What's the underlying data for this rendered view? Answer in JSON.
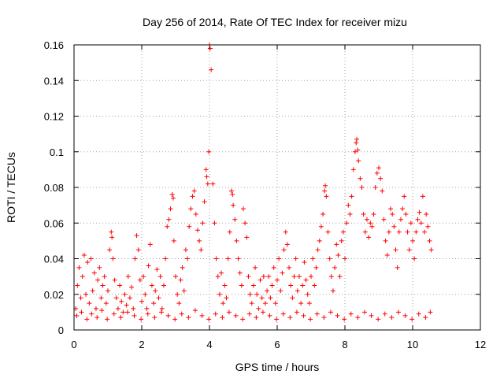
{
  "chart_data": {
    "type": "scatter",
    "title": "Day 256 of 2014, Rate Of TEC Index for receiver mizu",
    "xlabel": "GPS time / hours",
    "ylabel": "ROTI / TECUs",
    "xlim": [
      0,
      12
    ],
    "ylim": [
      0,
      0.16
    ],
    "xticks": [
      0,
      2,
      4,
      6,
      8,
      10,
      12
    ],
    "xtick_labels": [
      "0",
      "2",
      "4",
      "6",
      "8",
      "10",
      "12"
    ],
    "yticks": [
      0,
      0.02,
      0.04,
      0.06,
      0.08,
      0.1,
      0.12,
      0.14,
      0.16
    ],
    "ytick_labels": [
      "0",
      "0.02",
      "0.04",
      "0.06",
      "0.08",
      "0.1",
      "0.12",
      "0.14",
      "0.16"
    ],
    "grid": true,
    "marker": "+",
    "color": "#ff0000",
    "series": [
      {
        "name": "ROTI",
        "points": [
          [
            0.05,
            0.012
          ],
          [
            0.1,
            0.025
          ],
          [
            0.15,
            0.035
          ],
          [
            0.2,
            0.018
          ],
          [
            0.25,
            0.03
          ],
          [
            0.3,
            0.042
          ],
          [
            0.35,
            0.02
          ],
          [
            0.4,
            0.038
          ],
          [
            0.45,
            0.015
          ],
          [
            0.5,
            0.04
          ],
          [
            0.55,
            0.022
          ],
          [
            0.6,
            0.032
          ],
          [
            0.65,
            0.012
          ],
          [
            0.7,
            0.028
          ],
          [
            0.75,
            0.035
          ],
          [
            0.8,
            0.018
          ],
          [
            0.85,
            0.025
          ],
          [
            0.9,
            0.03
          ],
          [
            0.95,
            0.015
          ],
          [
            1.0,
            0.022
          ],
          [
            1.05,
            0.045
          ],
          [
            1.1,
            0.055
          ],
          [
            1.12,
            0.052
          ],
          [
            1.15,
            0.04
          ],
          [
            1.2,
            0.028
          ],
          [
            1.25,
            0.018
          ],
          [
            1.3,
            0.012
          ],
          [
            1.35,
            0.025
          ],
          [
            1.4,
            0.016
          ],
          [
            1.45,
            0.01
          ],
          [
            1.5,
            0.02
          ],
          [
            1.55,
            0.014
          ],
          [
            1.6,
            0.03
          ],
          [
            1.65,
            0.018
          ],
          [
            1.7,
            0.024
          ],
          [
            1.75,
            0.012
          ],
          [
            1.8,
            0.04
          ],
          [
            1.85,
            0.053
          ],
          [
            1.9,
            0.045
          ],
          [
            1.95,
            0.028
          ],
          [
            2.0,
            0.016
          ],
          [
            2.05,
            0.03
          ],
          [
            2.1,
            0.02
          ],
          [
            2.15,
            0.012
          ],
          [
            2.2,
            0.036
          ],
          [
            2.25,
            0.048
          ],
          [
            2.3,
            0.025
          ],
          [
            2.35,
            0.015
          ],
          [
            2.4,
            0.022
          ],
          [
            2.45,
            0.034
          ],
          [
            2.5,
            0.018
          ],
          [
            2.55,
            0.03
          ],
          [
            2.6,
            0.012
          ],
          [
            2.65,
            0.025
          ],
          [
            2.7,
            0.04
          ],
          [
            2.75,
            0.058
          ],
          [
            2.8,
            0.062
          ],
          [
            2.85,
            0.068
          ],
          [
            2.9,
            0.076
          ],
          [
            2.93,
            0.074
          ],
          [
            2.95,
            0.05
          ],
          [
            3.0,
            0.03
          ],
          [
            3.05,
            0.02
          ],
          [
            3.1,
            0.015
          ],
          [
            3.15,
            0.028
          ],
          [
            3.2,
            0.035
          ],
          [
            3.25,
            0.022
          ],
          [
            3.3,
            0.045
          ],
          [
            3.35,
            0.04
          ],
          [
            3.4,
            0.058
          ],
          [
            3.45,
            0.068
          ],
          [
            3.5,
            0.075
          ],
          [
            3.55,
            0.078
          ],
          [
            3.6,
            0.065
          ],
          [
            3.65,
            0.056
          ],
          [
            3.7,
            0.05
          ],
          [
            3.75,
            0.045
          ],
          [
            3.8,
            0.06
          ],
          [
            3.85,
            0.072
          ],
          [
            3.9,
            0.09
          ],
          [
            3.92,
            0.086
          ],
          [
            3.95,
            0.082
          ],
          [
            3.98,
            0.1
          ],
          [
            4.0,
            0.16
          ],
          [
            4.02,
            0.158
          ],
          [
            4.05,
            0.146
          ],
          [
            4.1,
            0.082
          ],
          [
            4.15,
            0.06
          ],
          [
            4.2,
            0.04
          ],
          [
            4.25,
            0.03
          ],
          [
            4.3,
            0.02
          ],
          [
            4.35,
            0.032
          ],
          [
            4.4,
            0.015
          ],
          [
            4.45,
            0.025
          ],
          [
            4.5,
            0.018
          ],
          [
            4.55,
            0.04
          ],
          [
            4.6,
            0.055
          ],
          [
            4.65,
            0.078
          ],
          [
            4.68,
            0.076
          ],
          [
            4.7,
            0.07
          ],
          [
            4.75,
            0.062
          ],
          [
            4.8,
            0.05
          ],
          [
            4.85,
            0.04
          ],
          [
            4.9,
            0.032
          ],
          [
            4.95,
            0.025
          ],
          [
            5.0,
            0.068
          ],
          [
            5.05,
            0.06
          ],
          [
            5.1,
            0.052
          ],
          [
            5.15,
            0.03
          ],
          [
            5.2,
            0.02
          ],
          [
            5.25,
            0.015
          ],
          [
            5.3,
            0.025
          ],
          [
            5.35,
            0.035
          ],
          [
            5.4,
            0.02
          ],
          [
            5.45,
            0.012
          ],
          [
            5.5,
            0.028
          ],
          [
            5.55,
            0.018
          ],
          [
            5.6,
            0.03
          ],
          [
            5.65,
            0.015
          ],
          [
            5.7,
            0.022
          ],
          [
            5.75,
            0.03
          ],
          [
            5.8,
            0.018
          ],
          [
            5.85,
            0.025
          ],
          [
            5.9,
            0.035
          ],
          [
            5.95,
            0.015
          ],
          [
            6.0,
            0.028
          ],
          [
            6.05,
            0.04
          ],
          [
            6.1,
            0.022
          ],
          [
            6.15,
            0.032
          ],
          [
            6.2,
            0.045
          ],
          [
            6.25,
            0.055
          ],
          [
            6.3,
            0.048
          ],
          [
            6.35,
            0.035
          ],
          [
            6.4,
            0.025
          ],
          [
            6.45,
            0.018
          ],
          [
            6.5,
            0.03
          ],
          [
            6.55,
            0.04
          ],
          [
            6.6,
            0.022
          ],
          [
            6.65,
            0.03
          ],
          [
            6.7,
            0.015
          ],
          [
            6.75,
            0.025
          ],
          [
            6.8,
            0.038
          ],
          [
            6.85,
            0.028
          ],
          [
            6.9,
            0.02
          ],
          [
            6.95,
            0.015
          ],
          [
            7.0,
            0.03
          ],
          [
            7.05,
            0.04
          ],
          [
            7.1,
            0.025
          ],
          [
            7.15,
            0.035
          ],
          [
            7.2,
            0.045
          ],
          [
            7.25,
            0.05
          ],
          [
            7.3,
            0.058
          ],
          [
            7.35,
            0.065
          ],
          [
            7.4,
            0.078
          ],
          [
            7.42,
            0.081
          ],
          [
            7.45,
            0.075
          ],
          [
            7.5,
            0.055
          ],
          [
            7.55,
            0.04
          ],
          [
            7.6,
            0.03
          ],
          [
            7.65,
            0.022
          ],
          [
            7.7,
            0.035
          ],
          [
            7.75,
            0.048
          ],
          [
            7.8,
            0.042
          ],
          [
            7.85,
            0.03
          ],
          [
            7.9,
            0.05
          ],
          [
            7.95,
            0.055
          ],
          [
            8.0,
            0.04
          ],
          [
            8.05,
            0.06
          ],
          [
            8.1,
            0.07
          ],
          [
            8.15,
            0.065
          ],
          [
            8.2,
            0.075
          ],
          [
            8.25,
            0.09
          ],
          [
            8.3,
            0.1
          ],
          [
            8.33,
            0.105
          ],
          [
            8.35,
            0.107
          ],
          [
            8.38,
            0.101
          ],
          [
            8.4,
            0.095
          ],
          [
            8.45,
            0.085
          ],
          [
            8.5,
            0.08
          ],
          [
            8.55,
            0.065
          ],
          [
            8.6,
            0.055
          ],
          [
            8.65,
            0.062
          ],
          [
            8.7,
            0.052
          ],
          [
            8.75,
            0.06
          ],
          [
            8.8,
            0.058
          ],
          [
            8.85,
            0.065
          ],
          [
            8.9,
            0.08
          ],
          [
            8.95,
            0.088
          ],
          [
            9.0,
            0.091
          ],
          [
            9.05,
            0.085
          ],
          [
            9.1,
            0.078
          ],
          [
            9.15,
            0.062
          ],
          [
            9.2,
            0.05
          ],
          [
            9.25,
            0.042
          ],
          [
            9.3,
            0.055
          ],
          [
            9.35,
            0.068
          ],
          [
            9.4,
            0.065
          ],
          [
            9.45,
            0.058
          ],
          [
            9.5,
            0.045
          ],
          [
            9.55,
            0.035
          ],
          [
            9.6,
            0.055
          ],
          [
            9.65,
            0.062
          ],
          [
            9.7,
            0.068
          ],
          [
            9.75,
            0.075
          ],
          [
            9.8,
            0.065
          ],
          [
            9.85,
            0.055
          ],
          [
            9.9,
            0.045
          ],
          [
            9.95,
            0.06
          ],
          [
            10.0,
            0.05
          ],
          [
            10.05,
            0.04
          ],
          [
            10.1,
            0.055
          ],
          [
            10.15,
            0.062
          ],
          [
            10.2,
            0.066
          ],
          [
            10.25,
            0.06
          ],
          [
            10.3,
            0.075
          ],
          [
            10.35,
            0.055
          ],
          [
            10.4,
            0.065
          ],
          [
            10.45,
            0.058
          ],
          [
            10.5,
            0.05
          ],
          [
            10.55,
            0.045
          ],
          [
            0.08,
            0.008
          ],
          [
            0.22,
            0.01
          ],
          [
            0.38,
            0.006
          ],
          [
            0.52,
            0.009
          ],
          [
            0.68,
            0.007
          ],
          [
            0.82,
            0.011
          ],
          [
            0.98,
            0.006
          ],
          [
            1.18,
            0.009
          ],
          [
            1.38,
            0.007
          ],
          [
            1.58,
            0.01
          ],
          [
            1.78,
            0.008
          ],
          [
            1.98,
            0.006
          ],
          [
            2.18,
            0.009
          ],
          [
            2.38,
            0.007
          ],
          [
            2.58,
            0.01
          ],
          [
            2.78,
            0.008
          ],
          [
            2.98,
            0.006
          ],
          [
            3.18,
            0.009
          ],
          [
            3.38,
            0.007
          ],
          [
            3.58,
            0.011
          ],
          [
            3.78,
            0.008
          ],
          [
            3.98,
            0.006
          ],
          [
            4.18,
            0.009
          ],
          [
            4.38,
            0.007
          ],
          [
            4.58,
            0.01
          ],
          [
            4.78,
            0.008
          ],
          [
            4.98,
            0.006
          ],
          [
            5.18,
            0.009
          ],
          [
            5.38,
            0.007
          ],
          [
            5.58,
            0.01
          ],
          [
            5.78,
            0.008
          ],
          [
            5.98,
            0.006
          ],
          [
            6.18,
            0.009
          ],
          [
            6.38,
            0.007
          ],
          [
            6.58,
            0.01
          ],
          [
            6.78,
            0.008
          ],
          [
            6.98,
            0.006
          ],
          [
            7.18,
            0.009
          ],
          [
            7.38,
            0.007
          ],
          [
            7.58,
            0.01
          ],
          [
            7.78,
            0.008
          ],
          [
            7.98,
            0.006
          ],
          [
            8.18,
            0.009
          ],
          [
            8.38,
            0.007
          ],
          [
            8.58,
            0.01
          ],
          [
            8.78,
            0.008
          ],
          [
            8.98,
            0.006
          ],
          [
            9.18,
            0.009
          ],
          [
            9.38,
            0.007
          ],
          [
            9.58,
            0.01
          ],
          [
            9.78,
            0.008
          ],
          [
            9.98,
            0.006
          ],
          [
            10.18,
            0.009
          ],
          [
            10.38,
            0.007
          ],
          [
            10.52,
            0.01
          ]
        ]
      }
    ]
  }
}
